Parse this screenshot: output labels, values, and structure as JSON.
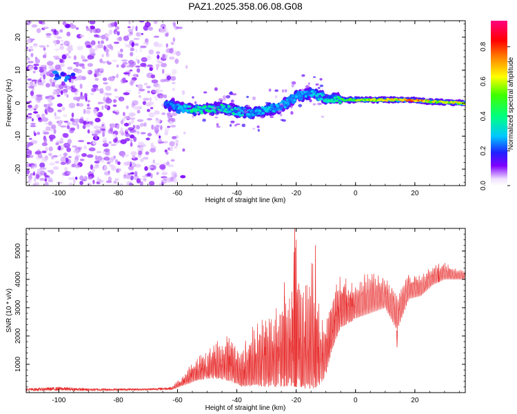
{
  "title": "PAZ1.2025.358.06.08.G08",
  "colors": {
    "line": "#e83030",
    "axis": "#000000",
    "background": "#ffffff"
  },
  "chart_data": [
    {
      "type": "heatmap",
      "name": "spectrogram",
      "xlabel": "Height of straight line (km)",
      "ylabel": "Frequency (Hz)",
      "xlim": [
        -111,
        37
      ],
      "ylim": [
        -25,
        25
      ],
      "xticks": [
        -100,
        -80,
        -60,
        -40,
        -20,
        0,
        20
      ],
      "xtick_labels": [
        "-100",
        "-80",
        "-60",
        "-40",
        "-20",
        "0",
        "20"
      ],
      "yticks": [
        -20,
        -10,
        0,
        10,
        20
      ],
      "ytick_labels": [
        "-20",
        "-10",
        "0",
        "10",
        "20"
      ],
      "colorbar": {
        "label": "Normalized spectral amplitude",
        "range": [
          0,
          0.95
        ],
        "ticks": [
          0.0,
          0.2,
          0.4,
          0.6,
          0.8
        ],
        "tick_labels": [
          "0.0",
          "0.2",
          "0.4",
          "0.6",
          "0.8"
        ],
        "colormap": "rainbow: white-violet-blue-cyan-green-yellow-red-magenta"
      },
      "regions": [
        {
          "desc": "noise",
          "x_range": [
            -111,
            -60
          ],
          "freq_range": [
            -25,
            25
          ],
          "amplitude": 0.05
        },
        {
          "desc": "weak blob",
          "x_center": -98,
          "freq_center": 8,
          "amplitude": 0.25
        }
      ],
      "ridge": [
        {
          "x": -64,
          "freq": 0.0,
          "amp": 0.25
        },
        {
          "x": -60,
          "freq": -1.5,
          "amp": 0.3
        },
        {
          "x": -55,
          "freq": -2.0,
          "amp": 0.42
        },
        {
          "x": -50,
          "freq": -2.0,
          "amp": 0.45
        },
        {
          "x": -45,
          "freq": -1.5,
          "amp": 0.42
        },
        {
          "x": -40,
          "freq": -2.5,
          "amp": 0.4
        },
        {
          "x": -35,
          "freq": -3.0,
          "amp": 0.3
        },
        {
          "x": -30,
          "freq": -2.0,
          "amp": 0.35
        },
        {
          "x": -25,
          "freq": -1.0,
          "amp": 0.3
        },
        {
          "x": -20,
          "freq": 2.0,
          "amp": 0.3
        },
        {
          "x": -15,
          "freq": 3.0,
          "amp": 0.3
        },
        {
          "x": -10,
          "freq": 1.5,
          "amp": 0.4
        },
        {
          "x": -5,
          "freq": 1.0,
          "amp": 0.5
        },
        {
          "x": 0,
          "freq": 1.0,
          "amp": 0.6
        },
        {
          "x": 5,
          "freq": 1.0,
          "amp": 0.7
        },
        {
          "x": 10,
          "freq": 1.0,
          "amp": 0.75
        },
        {
          "x": 15,
          "freq": 1.0,
          "amp": 0.75
        },
        {
          "x": 20,
          "freq": 0.8,
          "amp": 0.85
        },
        {
          "x": 25,
          "freq": 0.5,
          "amp": 0.72
        },
        {
          "x": 30,
          "freq": 0.3,
          "amp": 0.7
        },
        {
          "x": 37,
          "freq": 0.0,
          "amp": 0.72
        }
      ]
    },
    {
      "type": "line",
      "name": "snr",
      "xlabel": "Height of straight line (km)",
      "ylabel": "SNR (10 * v/v)",
      "xlim": [
        -111,
        37
      ],
      "ylim": [
        0,
        5800
      ],
      "xticks": [
        -100,
        -80,
        -60,
        -40,
        -20,
        0,
        20
      ],
      "xtick_labels": [
        "-100",
        "-80",
        "-60",
        "-40",
        "-20",
        "0",
        "20"
      ],
      "yticks": [
        1000,
        2000,
        3000,
        4000,
        5000
      ],
      "ytick_labels": [
        "1000",
        "2000",
        "3000",
        "4000",
        "5000"
      ],
      "envelope": {
        "x": [
          -111,
          -100,
          -90,
          -80,
          -70,
          -62,
          -58,
          -54,
          -50,
          -46,
          -42,
          -40,
          -38,
          -34,
          -30,
          -26,
          -22,
          -20,
          -18,
          -14,
          -12,
          -10,
          -8,
          -5,
          0,
          5,
          10,
          14,
          18,
          22,
          26,
          30,
          34,
          37
        ],
        "low": [
          60,
          70,
          60,
          70,
          80,
          100,
          250,
          400,
          500,
          500,
          400,
          300,
          200,
          250,
          200,
          200,
          250,
          200,
          150,
          150,
          300,
          600,
          1500,
          2300,
          2600,
          2800,
          3000,
          2200,
          3300,
          3400,
          3800,
          4000,
          4000,
          4000
        ],
        "high": [
          150,
          200,
          150,
          150,
          150,
          200,
          650,
          1200,
          1500,
          1900,
          2100,
          1800,
          1700,
          2600,
          2800,
          3200,
          3900,
          5700,
          4000,
          5200,
          3000,
          2500,
          3400,
          4200,
          3900,
          4400,
          4100,
          3500,
          4300,
          4200,
          4500,
          4600,
          4400,
          4300
        ]
      },
      "spikes": [
        {
          "x": -20.5,
          "y": 5800
        },
        {
          "x": -20.0,
          "y": 5400
        },
        {
          "x": -13.5,
          "y": 5200
        },
        {
          "x": -24.0,
          "y": 3900
        },
        {
          "x": 14.0,
          "y": 1600
        },
        {
          "x": 28.0,
          "y": 4550
        }
      ]
    }
  ]
}
